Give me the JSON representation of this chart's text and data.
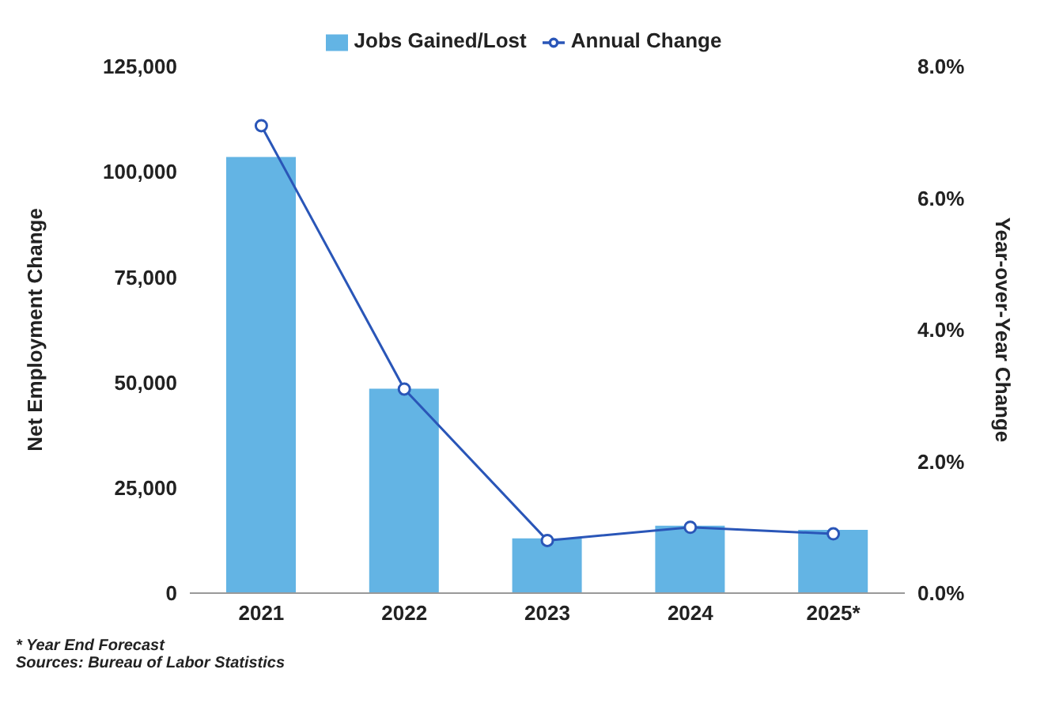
{
  "chart_data": {
    "type": "bar",
    "categories": [
      "2021",
      "2022",
      "2023",
      "2024",
      "2025*"
    ],
    "series": [
      {
        "name": "Jobs Gained/Lost",
        "color": "#63b4e4",
        "values": [
          103500,
          48500,
          13000,
          16000,
          15000
        ]
      },
      {
        "name": "Annual Change",
        "type": "line",
        "axis": "y2",
        "color": "#2a56b8",
        "values": [
          7.1,
          3.1,
          0.8,
          1.0,
          0.9
        ]
      }
    ],
    "ylabel": "Net Employment Change",
    "y2label": "Year-over-Year Change",
    "ylim": [
      0,
      125000
    ],
    "yticks": [
      {
        "value": 0,
        "label": "0"
      },
      {
        "value": 25000,
        "label": "25,000"
      },
      {
        "value": 50000,
        "label": "50,000"
      },
      {
        "value": 75000,
        "label": "75,000"
      },
      {
        "value": 100000,
        "label": "100,000"
      },
      {
        "value": 125000,
        "label": "125,000"
      }
    ],
    "y2lim": [
      0,
      8
    ],
    "y2ticks": [
      {
        "value": 0,
        "label": "0.0%"
      },
      {
        "value": 2,
        "label": "2.0%"
      },
      {
        "value": 4,
        "label": "4.0%"
      },
      {
        "value": 6,
        "label": "6.0%"
      },
      {
        "value": 8,
        "label": "8.0%"
      }
    ],
    "legend": "top",
    "marker": "circle",
    "annotations": [
      "* Year End Forecast",
      "Sources: Bureau of Labor Statistics"
    ]
  }
}
